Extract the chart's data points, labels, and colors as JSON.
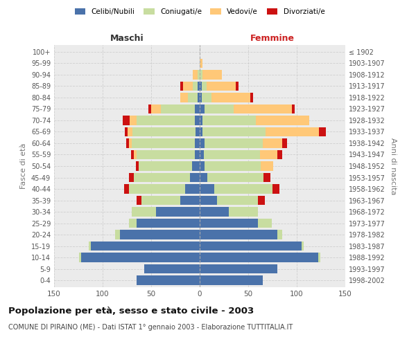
{
  "age_groups_bottom_to_top": [
    "0-4",
    "5-9",
    "10-14",
    "15-19",
    "20-24",
    "25-29",
    "30-34",
    "35-39",
    "40-44",
    "45-49",
    "50-54",
    "55-59",
    "60-64",
    "65-69",
    "70-74",
    "75-79",
    "80-84",
    "85-89",
    "90-94",
    "95-99",
    "100+"
  ],
  "birth_years_bottom_to_top": [
    "1998-2002",
    "1993-1997",
    "1988-1992",
    "1983-1987",
    "1978-1982",
    "1973-1977",
    "1968-1972",
    "1963-1967",
    "1958-1962",
    "1953-1957",
    "1948-1952",
    "1943-1947",
    "1938-1942",
    "1933-1937",
    "1928-1932",
    "1923-1927",
    "1918-1922",
    "1913-1917",
    "1908-1912",
    "1903-1907",
    "≤ 1902"
  ],
  "males_celibi": [
    65,
    57,
    122,
    112,
    82,
    65,
    45,
    20,
    15,
    10,
    8,
    5,
    5,
    4,
    5,
    5,
    2,
    2,
    0,
    0,
    0
  ],
  "males_coniugati": [
    0,
    0,
    2,
    2,
    5,
    8,
    25,
    40,
    58,
    58,
    55,
    60,
    65,
    65,
    60,
    35,
    10,
    5,
    2,
    0,
    0
  ],
  "males_vedovi": [
    0,
    0,
    0,
    0,
    0,
    0,
    0,
    0,
    0,
    0,
    0,
    3,
    3,
    5,
    7,
    10,
    8,
    10,
    5,
    0,
    0
  ],
  "males_divorziati": [
    0,
    0,
    0,
    0,
    0,
    0,
    0,
    5,
    5,
    5,
    3,
    3,
    3,
    3,
    7,
    3,
    0,
    3,
    0,
    0,
    0
  ],
  "females_nubili": [
    65,
    80,
    122,
    105,
    80,
    60,
    30,
    18,
    15,
    8,
    5,
    4,
    5,
    3,
    3,
    5,
    2,
    2,
    0,
    0,
    0
  ],
  "females_coniugate": [
    0,
    0,
    2,
    2,
    5,
    14,
    30,
    42,
    60,
    58,
    58,
    58,
    60,
    65,
    55,
    30,
    10,
    5,
    3,
    0,
    0
  ],
  "females_vedove": [
    0,
    0,
    0,
    0,
    0,
    0,
    0,
    0,
    0,
    0,
    13,
    18,
    20,
    55,
    55,
    60,
    40,
    30,
    20,
    3,
    0
  ],
  "females_divorziate": [
    0,
    0,
    0,
    0,
    0,
    0,
    0,
    7,
    7,
    7,
    0,
    5,
    5,
    7,
    0,
    3,
    3,
    3,
    0,
    0,
    0
  ],
  "colors": {
    "celibi": "#4a72aa",
    "coniugati": "#c8dda0",
    "vedovi": "#ffc878",
    "divorziati": "#cc1111"
  },
  "xlim": 150,
  "title": "Popolazione per età, sesso e stato civile - 2003",
  "subtitle": "COMUNE DI PIRAINO (ME) - Dati ISTAT 1° gennaio 2003 - Elaborazione TUTTITALIA.IT",
  "ylabel_left": "Fasce di età",
  "ylabel_right": "Anni di nascita",
  "xlabel_left": "Maschi",
  "xlabel_right": "Femmine"
}
